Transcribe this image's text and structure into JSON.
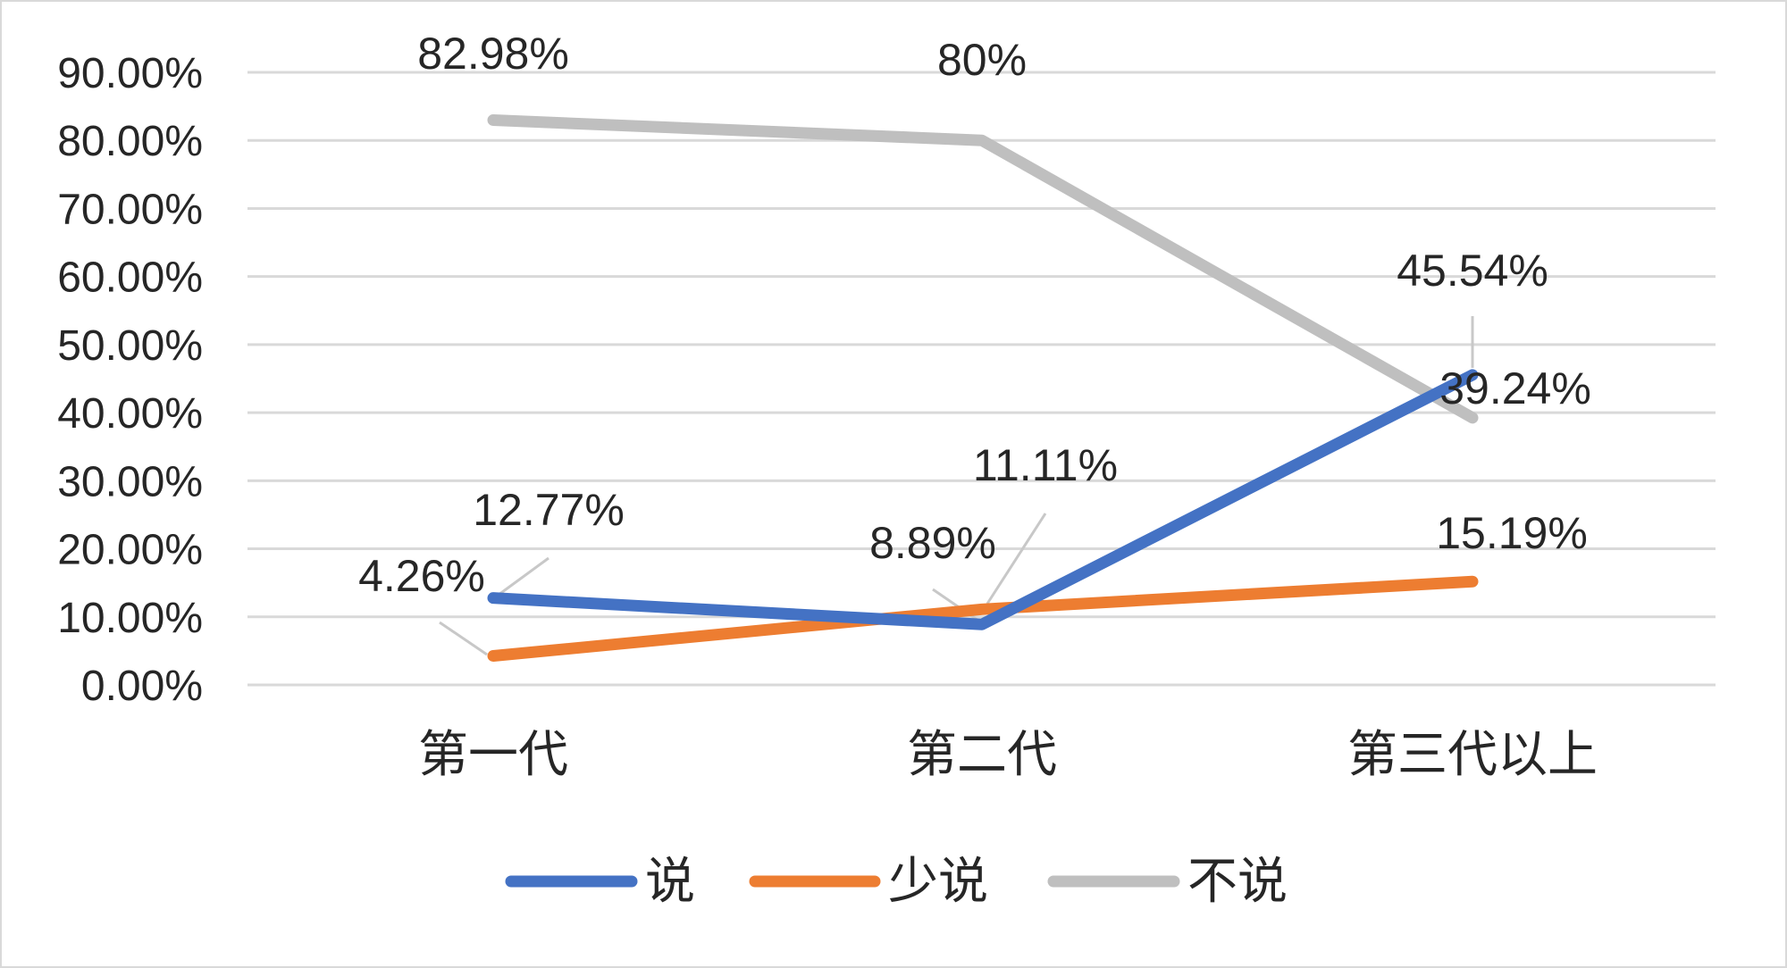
{
  "chart_data": {
    "type": "line",
    "categories": [
      "第一代",
      "第二代",
      "第三代以上"
    ],
    "series": [
      {
        "name": "说",
        "values": [
          12.77,
          8.89,
          45.54
        ],
        "labels": [
          "12.77%",
          "8.89%",
          "45.54%"
        ],
        "color": "#4472C4"
      },
      {
        "name": "少说",
        "values": [
          4.26,
          11.11,
          15.19
        ],
        "labels": [
          "4.26%",
          "11.11%",
          "15.19%"
        ],
        "color": "#ED7D31"
      },
      {
        "name": "不说",
        "values": [
          82.98,
          80,
          39.24
        ],
        "labels": [
          "82.98%",
          "80%",
          "39.24%"
        ],
        "color": "#BFBFBF"
      }
    ],
    "y_ticks": [
      "0.00%",
      "10.00%",
      "20.00%",
      "30.00%",
      "40.00%",
      "50.00%",
      "60.00%",
      "70.00%",
      "80.00%",
      "90.00%"
    ],
    "ylim": [
      0,
      90
    ],
    "grid": true,
    "legend_position": "bottom",
    "title": "",
    "xlabel": "",
    "ylabel": ""
  }
}
